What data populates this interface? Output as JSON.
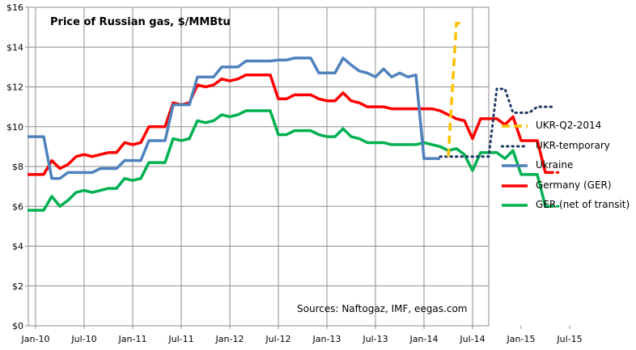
{
  "chart_data": {
    "type": "line",
    "title": "Price of Russian gas, $/MMBtu",
    "source": "Sources: Naftogaz, IMF, eegas.com",
    "xlabel": "",
    "ylabel": "",
    "ylim": [
      0,
      16
    ],
    "y_ticks": [
      "$0",
      "$2",
      "$4",
      "$6",
      "$8",
      "$10",
      "$12",
      "$14",
      "$16"
    ],
    "y_tick_values": [
      0,
      2,
      4,
      6,
      8,
      10,
      12,
      14,
      16
    ],
    "x_tick_labels": [
      "Jan-10",
      "Jul-10",
      "Jan-11",
      "Jul-11",
      "Jan-12",
      "Jul-12",
      "Jan-13",
      "Jul-13",
      "Jan-14",
      "Jul-14",
      "Jan-15",
      "Jul-15"
    ],
    "x_tick_values": [
      "2010-01",
      "2010-07",
      "2011-01",
      "2011-07",
      "2012-01",
      "2012-07",
      "2013-01",
      "2013-07",
      "2014-01",
      "2014-07",
      "2015-01",
      "2015-07"
    ],
    "grid": true,
    "legend_position": "right",
    "series": [
      {
        "name": "UKR-Q2-2014",
        "color": "#FFC000",
        "style": "dashed",
        "points": [
          [
            "2014-04",
            8.5
          ],
          [
            "2014-05",
            15.2
          ],
          [
            "2014-06",
            15.2
          ]
        ]
      },
      {
        "name": "UKR-temporary",
        "color": "#1F3864",
        "style": "dotted",
        "points": [
          [
            "2014-03",
            8.5
          ],
          [
            "2014-04",
            8.5
          ],
          [
            "2014-05",
            8.5
          ],
          [
            "2014-06",
            8.5
          ],
          [
            "2014-07",
            8.5
          ],
          [
            "2014-08",
            8.5
          ],
          [
            "2014-09",
            8.5
          ],
          [
            "2014-10",
            11.9
          ],
          [
            "2014-11",
            11.9
          ],
          [
            "2014-12",
            10.7
          ],
          [
            "2015-01",
            10.7
          ],
          [
            "2015-02",
            10.7
          ],
          [
            "2015-03",
            11.0
          ],
          [
            "2015-04",
            11.0
          ],
          [
            "2015-05",
            11.0
          ]
        ]
      },
      {
        "name": "Ukraine",
        "color": "#4F81BD",
        "style": "solid",
        "points": [
          [
            "2009-12",
            9.5
          ],
          [
            "2010-01",
            9.5
          ],
          [
            "2010-02",
            9.5
          ],
          [
            "2010-03",
            7.4
          ],
          [
            "2010-04",
            7.4
          ],
          [
            "2010-05",
            7.7
          ],
          [
            "2010-06",
            7.7
          ],
          [
            "2010-07",
            7.7
          ],
          [
            "2010-08",
            7.7
          ],
          [
            "2010-09",
            7.9
          ],
          [
            "2010-10",
            7.9
          ],
          [
            "2010-11",
            7.9
          ],
          [
            "2010-12",
            8.3
          ],
          [
            "2011-01",
            8.3
          ],
          [
            "2011-02",
            8.3
          ],
          [
            "2011-03",
            9.3
          ],
          [
            "2011-04",
            9.3
          ],
          [
            "2011-05",
            9.3
          ],
          [
            "2011-06",
            11.1
          ],
          [
            "2011-07",
            11.1
          ],
          [
            "2011-08",
            11.1
          ],
          [
            "2011-09",
            12.5
          ],
          [
            "2011-10",
            12.5
          ],
          [
            "2011-11",
            12.5
          ],
          [
            "2011-12",
            13.0
          ],
          [
            "2012-01",
            13.0
          ],
          [
            "2012-02",
            13.0
          ],
          [
            "2012-03",
            13.3
          ],
          [
            "2012-04",
            13.3
          ],
          [
            "2012-05",
            13.3
          ],
          [
            "2012-06",
            13.3
          ],
          [
            "2012-07",
            13.35
          ],
          [
            "2012-08",
            13.35
          ],
          [
            "2012-09",
            13.45
          ],
          [
            "2012-10",
            13.45
          ],
          [
            "2012-11",
            13.45
          ],
          [
            "2012-12",
            12.7
          ],
          [
            "2013-01",
            12.7
          ],
          [
            "2013-02",
            12.7
          ],
          [
            "2013-03",
            13.45
          ],
          [
            "2013-04",
            13.1
          ],
          [
            "2013-05",
            12.8
          ],
          [
            "2013-06",
            12.7
          ],
          [
            "2013-07",
            12.5
          ],
          [
            "2013-08",
            12.9
          ],
          [
            "2013-09",
            12.5
          ],
          [
            "2013-10",
            12.7
          ],
          [
            "2013-11",
            12.5
          ],
          [
            "2013-12",
            12.6
          ],
          [
            "2014-01",
            8.4
          ],
          [
            "2014-02",
            8.4
          ],
          [
            "2014-03",
            8.4
          ]
        ]
      },
      {
        "name": "Germany (GER)",
        "color": "#FF0000",
        "style": "solid",
        "points": [
          [
            "2009-12",
            7.6
          ],
          [
            "2010-01",
            7.6
          ],
          [
            "2010-02",
            7.6
          ],
          [
            "2010-03",
            8.3
          ],
          [
            "2010-04",
            7.9
          ],
          [
            "2010-05",
            8.1
          ],
          [
            "2010-06",
            8.5
          ],
          [
            "2010-07",
            8.6
          ],
          [
            "2010-08",
            8.5
          ],
          [
            "2010-09",
            8.6
          ],
          [
            "2010-10",
            8.7
          ],
          [
            "2010-11",
            8.7
          ],
          [
            "2010-12",
            9.2
          ],
          [
            "2011-01",
            9.1
          ],
          [
            "2011-02",
            9.2
          ],
          [
            "2011-03",
            10.0
          ],
          [
            "2011-04",
            10.0
          ],
          [
            "2011-05",
            10.0
          ],
          [
            "2011-06",
            11.2
          ],
          [
            "2011-07",
            11.1
          ],
          [
            "2011-08",
            11.2
          ],
          [
            "2011-09",
            12.1
          ],
          [
            "2011-10",
            12.0
          ],
          [
            "2011-11",
            12.1
          ],
          [
            "2011-12",
            12.4
          ],
          [
            "2012-01",
            12.3
          ],
          [
            "2012-02",
            12.4
          ],
          [
            "2012-03",
            12.6
          ],
          [
            "2012-04",
            12.6
          ],
          [
            "2012-05",
            12.6
          ],
          [
            "2012-06",
            12.6
          ],
          [
            "2012-07",
            11.4
          ],
          [
            "2012-08",
            11.4
          ],
          [
            "2012-09",
            11.6
          ],
          [
            "2012-10",
            11.6
          ],
          [
            "2012-11",
            11.6
          ],
          [
            "2012-12",
            11.4
          ],
          [
            "2013-01",
            11.3
          ],
          [
            "2013-02",
            11.3
          ],
          [
            "2013-03",
            11.7
          ],
          [
            "2013-04",
            11.3
          ],
          [
            "2013-05",
            11.2
          ],
          [
            "2013-06",
            11.0
          ],
          [
            "2013-07",
            11.0
          ],
          [
            "2013-08",
            11.0
          ],
          [
            "2013-09",
            10.9
          ],
          [
            "2013-10",
            10.9
          ],
          [
            "2013-11",
            10.9
          ],
          [
            "2013-12",
            10.9
          ],
          [
            "2014-01",
            10.9
          ],
          [
            "2014-02",
            10.9
          ],
          [
            "2014-03",
            10.8
          ],
          [
            "2014-04",
            10.6
          ],
          [
            "2014-05",
            10.4
          ],
          [
            "2014-06",
            10.3
          ],
          [
            "2014-07",
            9.4
          ],
          [
            "2014-08",
            10.4
          ],
          [
            "2014-09",
            10.4
          ],
          [
            "2014-10",
            10.4
          ],
          [
            "2014-11",
            10.1
          ],
          [
            "2014-12",
            10.5
          ],
          [
            "2015-01",
            9.3
          ],
          [
            "2015-02",
            9.3
          ],
          [
            "2015-03",
            9.3
          ],
          [
            "2015-04",
            7.7
          ],
          [
            "2015-05",
            7.7
          ]
        ]
      },
      {
        "name": "GER (net of transit)",
        "color": "#00B050",
        "style": "solid",
        "points": [
          [
            "2009-12",
            5.8
          ],
          [
            "2010-01",
            5.8
          ],
          [
            "2010-02",
            5.8
          ],
          [
            "2010-03",
            6.5
          ],
          [
            "2010-04",
            6.0
          ],
          [
            "2010-05",
            6.3
          ],
          [
            "2010-06",
            6.7
          ],
          [
            "2010-07",
            6.8
          ],
          [
            "2010-08",
            6.7
          ],
          [
            "2010-09",
            6.8
          ],
          [
            "2010-10",
            6.9
          ],
          [
            "2010-11",
            6.9
          ],
          [
            "2010-12",
            7.4
          ],
          [
            "2011-01",
            7.3
          ],
          [
            "2011-02",
            7.4
          ],
          [
            "2011-03",
            8.2
          ],
          [
            "2011-04",
            8.2
          ],
          [
            "2011-05",
            8.2
          ],
          [
            "2011-06",
            9.4
          ],
          [
            "2011-07",
            9.3
          ],
          [
            "2011-08",
            9.4
          ],
          [
            "2011-09",
            10.3
          ],
          [
            "2011-10",
            10.2
          ],
          [
            "2011-11",
            10.3
          ],
          [
            "2011-12",
            10.6
          ],
          [
            "2012-01",
            10.5
          ],
          [
            "2012-02",
            10.6
          ],
          [
            "2012-03",
            10.8
          ],
          [
            "2012-04",
            10.8
          ],
          [
            "2012-05",
            10.8
          ],
          [
            "2012-06",
            10.8
          ],
          [
            "2012-07",
            9.6
          ],
          [
            "2012-08",
            9.6
          ],
          [
            "2012-09",
            9.8
          ],
          [
            "2012-10",
            9.8
          ],
          [
            "2012-11",
            9.8
          ],
          [
            "2012-12",
            9.6
          ],
          [
            "2013-01",
            9.5
          ],
          [
            "2013-02",
            9.5
          ],
          [
            "2013-03",
            9.9
          ],
          [
            "2013-04",
            9.5
          ],
          [
            "2013-05",
            9.4
          ],
          [
            "2013-06",
            9.2
          ],
          [
            "2013-07",
            9.2
          ],
          [
            "2013-08",
            9.2
          ],
          [
            "2013-09",
            9.1
          ],
          [
            "2013-10",
            9.1
          ],
          [
            "2013-11",
            9.1
          ],
          [
            "2013-12",
            9.1
          ],
          [
            "2014-01",
            9.2
          ],
          [
            "2014-02",
            9.1
          ],
          [
            "2014-03",
            9.0
          ],
          [
            "2014-04",
            8.8
          ],
          [
            "2014-05",
            8.9
          ],
          [
            "2014-06",
            8.6
          ],
          [
            "2014-07",
            7.8
          ],
          [
            "2014-08",
            8.7
          ],
          [
            "2014-09",
            8.7
          ],
          [
            "2014-10",
            8.7
          ],
          [
            "2014-11",
            8.4
          ],
          [
            "2014-12",
            8.8
          ],
          [
            "2015-01",
            7.6
          ],
          [
            "2015-02",
            7.6
          ],
          [
            "2015-03",
            7.6
          ],
          [
            "2015-04",
            6.0
          ],
          [
            "2015-05",
            6.0
          ]
        ]
      },
      {
        "name": "",
        "color": "#FF0000",
        "style": "dotted",
        "points": [
          [
            "2015-02",
            9.3
          ],
          [
            "2015-03",
            9.3
          ],
          [
            "2015-04",
            7.7
          ],
          [
            "2015-05",
            7.7
          ],
          [
            "2015-06",
            7.7
          ]
        ]
      },
      {
        "name": "",
        "color": "#00B050",
        "style": "dotted",
        "points": [
          [
            "2015-02",
            7.6
          ],
          [
            "2015-03",
            7.6
          ],
          [
            "2015-04",
            6.0
          ],
          [
            "2015-05",
            6.0
          ],
          [
            "2015-06",
            6.0
          ]
        ]
      }
    ]
  },
  "legend": {
    "items": [
      {
        "label": "UKR-Q2-2014",
        "color": "#FFC000",
        "style": "dashed"
      },
      {
        "label": "UKR-temporary",
        "color": "#1F3864",
        "style": "dotted"
      },
      {
        "label": "Ukraine",
        "color": "#4F81BD",
        "style": "solid"
      },
      {
        "label": "Germany (GER)",
        "color": "#FF0000",
        "style": "solid"
      },
      {
        "label": "GER (net of transit)",
        "color": "#00B050",
        "style": "solid"
      }
    ]
  }
}
